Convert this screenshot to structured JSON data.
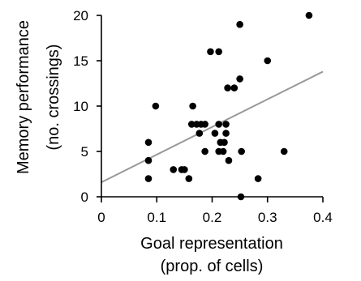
{
  "chart_data": {
    "type": "scatter",
    "title": "",
    "xlabel_lines": [
      "Goal representation",
      "(prop. of cells)"
    ],
    "ylabel_lines": [
      "Memory performance",
      "(no. crossings)"
    ],
    "xlim": [
      0,
      0.4
    ],
    "ylim": [
      0,
      20
    ],
    "xticks": [
      0,
      0.1,
      0.2,
      0.3,
      0.4
    ],
    "xtick_labels": [
      "0",
      "0.1",
      "0.2",
      "0.3",
      "0.4"
    ],
    "yticks": [
      0,
      5,
      10,
      15,
      20
    ],
    "ytick_labels": [
      "0",
      "5",
      "10",
      "15",
      "20"
    ],
    "grid": false,
    "legend": "none",
    "points": [
      {
        "x": 0.085,
        "y": 6
      },
      {
        "x": 0.085,
        "y": 4
      },
      {
        "x": 0.085,
        "y": 2
      },
      {
        "x": 0.098,
        "y": 10
      },
      {
        "x": 0.13,
        "y": 3
      },
      {
        "x": 0.145,
        "y": 3
      },
      {
        "x": 0.15,
        "y": 3
      },
      {
        "x": 0.158,
        "y": 2
      },
      {
        "x": 0.163,
        "y": 8
      },
      {
        "x": 0.165,
        "y": 10
      },
      {
        "x": 0.172,
        "y": 8
      },
      {
        "x": 0.177,
        "y": 7
      },
      {
        "x": 0.18,
        "y": 8
      },
      {
        "x": 0.187,
        "y": 8
      },
      {
        "x": 0.187,
        "y": 5
      },
      {
        "x": 0.197,
        "y": 16
      },
      {
        "x": 0.205,
        "y": 7
      },
      {
        "x": 0.212,
        "y": 16
      },
      {
        "x": 0.212,
        "y": 8
      },
      {
        "x": 0.212,
        "y": 5
      },
      {
        "x": 0.215,
        "y": 6
      },
      {
        "x": 0.22,
        "y": 5
      },
      {
        "x": 0.222,
        "y": 6
      },
      {
        "x": 0.225,
        "y": 8
      },
      {
        "x": 0.225,
        "y": 7
      },
      {
        "x": 0.228,
        "y": 12
      },
      {
        "x": 0.23,
        "y": 4
      },
      {
        "x": 0.24,
        "y": 12
      },
      {
        "x": 0.25,
        "y": 19
      },
      {
        "x": 0.25,
        "y": 13
      },
      {
        "x": 0.253,
        "y": 5
      },
      {
        "x": 0.252,
        "y": 0
      },
      {
        "x": 0.283,
        "y": 2
      },
      {
        "x": 0.3,
        "y": 15
      },
      {
        "x": 0.33,
        "y": 5
      },
      {
        "x": 0.375,
        "y": 20
      }
    ],
    "trendline": {
      "x": [
        0,
        0.4
      ],
      "y": [
        1.6,
        13.8
      ]
    },
    "colors": {
      "points": "#000000",
      "trendline": "#999999",
      "axes": "#000000"
    }
  }
}
